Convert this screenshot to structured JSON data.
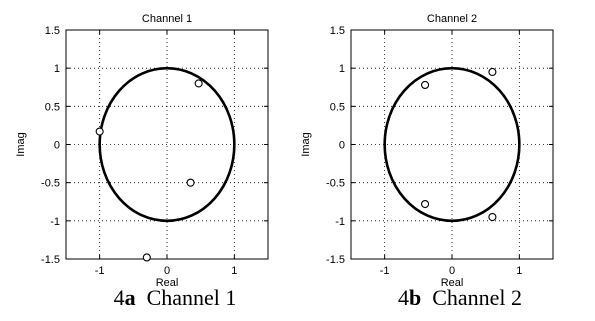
{
  "chart_data": [
    {
      "type": "scatter",
      "title": "Channel 1",
      "xlabel": "Real",
      "ylabel": "Imag",
      "xlim": [
        -1.5,
        1.5
      ],
      "ylim": [
        -1.5,
        1.5
      ],
      "xticks": [
        -1,
        0,
        1
      ],
      "yticks": [
        -1.5,
        -1,
        -0.5,
        0,
        0.5,
        1,
        1.5
      ],
      "grid": true,
      "unit_circle": true,
      "points": [
        {
          "x": 0.47,
          "y": 0.8
        },
        {
          "x": -1.0,
          "y": 0.17
        },
        {
          "x": 0.35,
          "y": -0.5
        },
        {
          "x": -0.3,
          "y": -1.48
        }
      ],
      "caption": {
        "number": "4",
        "letter": "a",
        "text": "Channel 1"
      }
    },
    {
      "type": "scatter",
      "title": "Channel 2",
      "xlabel": "Real",
      "ylabel": "Imag",
      "xlim": [
        -1.5,
        1.5
      ],
      "ylim": [
        -1.5,
        1.5
      ],
      "xticks": [
        -1,
        0,
        1
      ],
      "yticks": [
        -1.5,
        -1,
        -0.5,
        0,
        0.5,
        1,
        1.5
      ],
      "grid": true,
      "unit_circle": true,
      "points": [
        {
          "x": -0.4,
          "y": 0.78
        },
        {
          "x": 0.6,
          "y": 0.95
        },
        {
          "x": -0.4,
          "y": -0.78
        },
        {
          "x": 0.6,
          "y": -0.95
        }
      ],
      "caption": {
        "number": "4",
        "letter": "b",
        "text": "Channel 2"
      }
    }
  ]
}
